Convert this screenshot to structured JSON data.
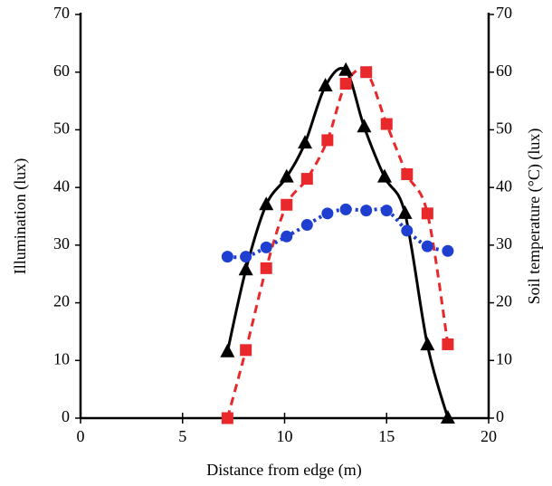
{
  "chart_data": {
    "type": "line",
    "xlabel": "Distance from edge (m)",
    "ylabel": "Illumination (lux)",
    "y2label": "Soil temperature (°C) (lux)",
    "xlim": [
      0,
      20
    ],
    "xticks": [
      0,
      5,
      10,
      15,
      20
    ],
    "ylim": [
      0,
      70
    ],
    "yticks": [
      0,
      10,
      20,
      30,
      40,
      50,
      60,
      70
    ],
    "y2lim": [
      0,
      70
    ],
    "y2ticks": [
      0,
      10,
      20,
      30,
      40,
      50,
      60,
      70
    ],
    "series": [
      {
        "color": "#000000",
        "marker": "triangle",
        "dash": "solid",
        "x": [
          7.2,
          8.1,
          9.1,
          10.1,
          11,
          12,
          13,
          13.9,
          14.9,
          15.9,
          17,
          18
        ],
        "values": [
          11.5,
          25.7,
          37,
          41.8,
          47.7,
          57.6,
          60.3,
          50.5,
          41.8,
          35.5,
          12.7,
          0
        ]
      },
      {
        "color": "#e8282b",
        "marker": "square",
        "dash": "dashed",
        "x": [
          7.2,
          8.1,
          9.1,
          10.1,
          11.1,
          12.1,
          13,
          14,
          15,
          16,
          17,
          18
        ],
        "values": [
          0,
          11.8,
          26,
          37,
          41.5,
          48.2,
          58,
          60,
          51,
          42.3,
          35.5,
          12.8
        ]
      },
      {
        "color": "#1f3fd0",
        "marker": "circle",
        "dash": "dotted",
        "x": [
          7.2,
          8.1,
          9.1,
          10.1,
          11.1,
          12.1,
          13,
          14,
          15,
          16,
          17,
          18
        ],
        "values": [
          28,
          28,
          29.6,
          31.5,
          33.5,
          35.5,
          36.2,
          36,
          36,
          32.5,
          29.8,
          29
        ]
      }
    ]
  }
}
